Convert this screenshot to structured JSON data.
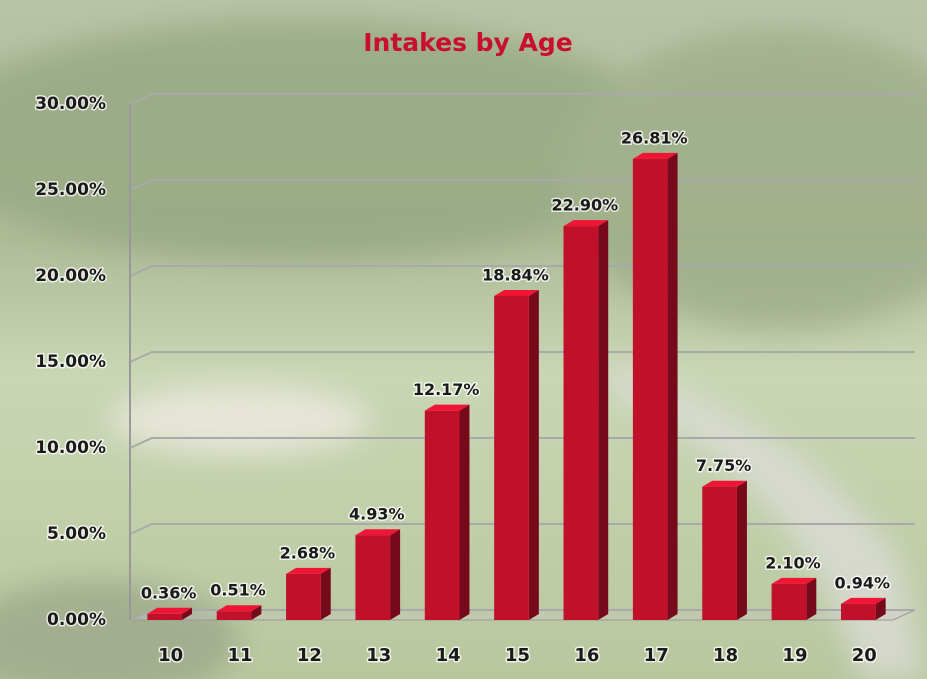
{
  "chart_data": {
    "type": "bar",
    "title": "Intakes by Age",
    "categories": [
      "10",
      "11",
      "12",
      "13",
      "14",
      "15",
      "16",
      "17",
      "18",
      "19",
      "20"
    ],
    "values": [
      0.36,
      0.51,
      2.68,
      4.93,
      12.17,
      18.84,
      22.9,
      26.81,
      7.75,
      2.1,
      0.94
    ],
    "value_labels": [
      "0.36%",
      "0.51%",
      "2.68%",
      "4.93%",
      "12.17%",
      "18.84%",
      "22.90%",
      "26.81%",
      "7.75%",
      "2.10%",
      "0.94%"
    ],
    "color": "#c0102a",
    "ylim": [
      0,
      30
    ],
    "yticks": [
      {
        "value": 0,
        "label": "0.00%"
      },
      {
        "value": 5,
        "label": "5.00%"
      },
      {
        "value": 10,
        "label": "10.00%"
      },
      {
        "value": 15,
        "label": "15.00%"
      },
      {
        "value": 20,
        "label": "20.00%"
      },
      {
        "value": 25,
        "label": "25.00%"
      },
      {
        "value": 30,
        "label": "30.00%"
      }
    ],
    "grid": true
  }
}
